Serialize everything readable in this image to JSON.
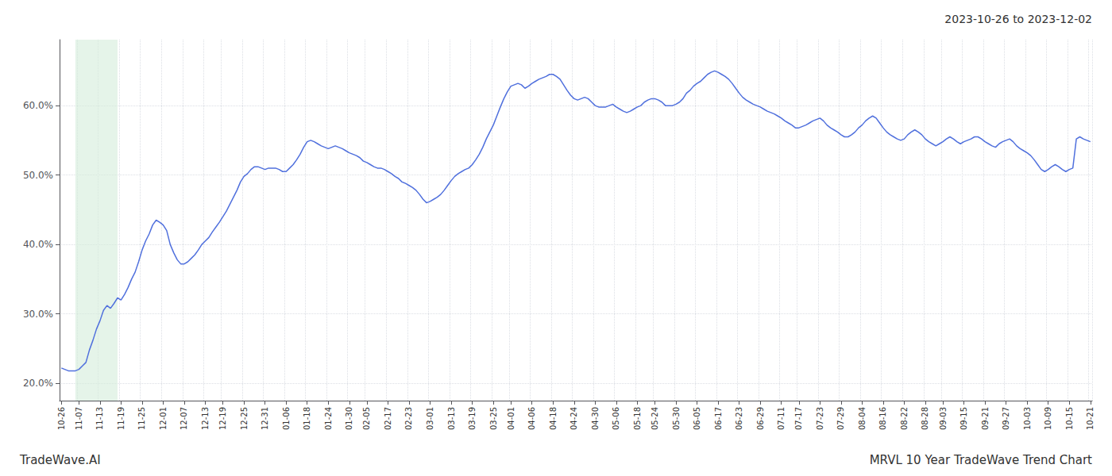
{
  "chart_data": {
    "type": "line",
    "title": "2023-10-26 to 2023-12-02",
    "annotations": [
      "TradeWave.AI",
      "MRVL 10 Year TradeWave Trend Chart"
    ],
    "grid": true,
    "ylim": [
      0.175,
      0.695
    ],
    "yticks": [
      {
        "value": 0.2,
        "label": "20.0%"
      },
      {
        "value": 0.3,
        "label": "30.0%"
      },
      {
        "value": 0.4,
        "label": "40.0%"
      },
      {
        "value": 0.5,
        "label": "50.0%"
      },
      {
        "value": 0.6,
        "label": "60.0%"
      }
    ],
    "highlight": {
      "start": 4,
      "end": 16,
      "color": "#d4edda"
    },
    "categories": [
      "10-26",
      null,
      null,
      null,
      null,
      "11-07",
      null,
      null,
      null,
      null,
      null,
      "11-13",
      null,
      null,
      null,
      null,
      null,
      "11-19",
      null,
      null,
      null,
      null,
      null,
      "11-25",
      null,
      null,
      null,
      null,
      null,
      "12-01",
      null,
      null,
      null,
      null,
      null,
      "12-07",
      null,
      null,
      null,
      null,
      null,
      "12-13",
      null,
      null,
      null,
      null,
      "12-19",
      null,
      null,
      null,
      null,
      null,
      "12-25",
      null,
      null,
      null,
      null,
      null,
      "12-31",
      null,
      null,
      null,
      null,
      null,
      "01-06",
      null,
      null,
      null,
      null,
      null,
      "01-18",
      null,
      null,
      null,
      null,
      null,
      "01-24",
      null,
      null,
      null,
      null,
      null,
      "01-30",
      null,
      null,
      null,
      null,
      "02-05",
      null,
      null,
      null,
      null,
      null,
      "02-17",
      null,
      null,
      null,
      null,
      null,
      "02-23",
      null,
      null,
      null,
      null,
      null,
      "03-01",
      null,
      null,
      null,
      null,
      null,
      "03-13",
      null,
      null,
      null,
      null,
      null,
      "03-19",
      null,
      null,
      null,
      null,
      null,
      "03-25",
      null,
      null,
      null,
      null,
      "04-01",
      null,
      null,
      null,
      null,
      null,
      "04-06",
      null,
      null,
      null,
      null,
      null,
      "04-18",
      null,
      null,
      null,
      null,
      null,
      "04-24",
      null,
      null,
      null,
      null,
      null,
      "04-30",
      null,
      null,
      null,
      null,
      null,
      "05-06",
      null,
      null,
      null,
      null,
      null,
      "05-18",
      null,
      null,
      null,
      null,
      "05-24",
      null,
      null,
      null,
      null,
      null,
      "05-30",
      null,
      null,
      null,
      null,
      null,
      "06-05",
      null,
      null,
      null,
      null,
      null,
      "06-17",
      null,
      null,
      null,
      null,
      null,
      "06-23",
      null,
      null,
      null,
      null,
      null,
      "06-29",
      null,
      null,
      null,
      null,
      null,
      "07-11",
      null,
      null,
      null,
      null,
      "07-17",
      null,
      null,
      null,
      null,
      null,
      "07-23",
      null,
      null,
      null,
      null,
      null,
      "07-29",
      null,
      null,
      null,
      null,
      null,
      "08-04",
      null,
      null,
      null,
      null,
      null,
      "08-16",
      null,
      null,
      null,
      null,
      null,
      "08-22",
      null,
      null,
      null,
      null,
      null,
      "08-28",
      null,
      null,
      null,
      null,
      "09-03",
      null,
      null,
      null,
      null,
      null,
      "09-15",
      null,
      null,
      null,
      null,
      null,
      "09-21",
      null,
      null,
      null,
      null,
      null,
      "09-27",
      null,
      null,
      null,
      null,
      null,
      "10-03",
      null,
      null,
      null,
      null,
      null,
      "10-09",
      null,
      null,
      null,
      null,
      null,
      "10-15",
      null,
      null,
      null,
      null,
      null,
      "10-21"
    ],
    "values": [
      0.222,
      0.22,
      0.218,
      0.218,
      0.218,
      0.22,
      0.225,
      0.23,
      0.248,
      0.262,
      0.278,
      0.29,
      0.305,
      0.312,
      0.308,
      0.315,
      0.323,
      0.32,
      0.328,
      0.338,
      0.35,
      0.36,
      0.375,
      0.392,
      0.405,
      0.415,
      0.428,
      0.435,
      0.432,
      0.428,
      0.42,
      0.4,
      0.388,
      0.378,
      0.372,
      0.372,
      0.375,
      0.38,
      0.385,
      0.392,
      0.4,
      0.405,
      0.41,
      0.418,
      0.425,
      0.432,
      0.44,
      0.448,
      0.458,
      0.468,
      0.478,
      0.49,
      0.498,
      0.502,
      0.508,
      0.512,
      0.512,
      0.51,
      0.508,
      0.51,
      0.51,
      0.51,
      0.508,
      0.505,
      0.505,
      0.51,
      0.515,
      0.522,
      0.53,
      0.54,
      0.548,
      0.55,
      0.548,
      0.545,
      0.542,
      0.54,
      0.538,
      0.54,
      0.542,
      0.54,
      0.538,
      0.535,
      0.532,
      0.53,
      0.528,
      0.525,
      0.52,
      0.518,
      0.515,
      0.512,
      0.51,
      0.51,
      0.508,
      0.505,
      0.502,
      0.498,
      0.495,
      0.49,
      0.488,
      0.485,
      0.482,
      0.478,
      0.472,
      0.465,
      0.46,
      0.462,
      0.465,
      0.468,
      0.472,
      0.478,
      0.485,
      0.492,
      0.498,
      0.502,
      0.505,
      0.508,
      0.51,
      0.515,
      0.522,
      0.53,
      0.54,
      0.552,
      0.562,
      0.572,
      0.585,
      0.598,
      0.61,
      0.62,
      0.628,
      0.63,
      0.632,
      0.63,
      0.625,
      0.628,
      0.632,
      0.635,
      0.638,
      0.64,
      0.642,
      0.645,
      0.645,
      0.642,
      0.638,
      0.63,
      0.622,
      0.615,
      0.61,
      0.608,
      0.61,
      0.612,
      0.61,
      0.605,
      0.6,
      0.598,
      0.598,
      0.598,
      0.6,
      0.602,
      0.598,
      0.595,
      0.592,
      0.59,
      0.592,
      0.595,
      0.598,
      0.6,
      0.605,
      0.608,
      0.61,
      0.61,
      0.608,
      0.605,
      0.6,
      0.6,
      0.6,
      0.602,
      0.605,
      0.61,
      0.618,
      0.622,
      0.628,
      0.632,
      0.635,
      0.64,
      0.645,
      0.648,
      0.65,
      0.648,
      0.645,
      0.642,
      0.638,
      0.632,
      0.625,
      0.618,
      0.612,
      0.608,
      0.605,
      0.602,
      0.6,
      0.598,
      0.595,
      0.592,
      0.59,
      0.588,
      0.585,
      0.582,
      0.578,
      0.575,
      0.572,
      0.568,
      0.568,
      0.57,
      0.572,
      0.575,
      0.578,
      0.58,
      0.582,
      0.578,
      0.572,
      0.568,
      0.565,
      0.562,
      0.558,
      0.555,
      0.555,
      0.558,
      0.562,
      0.568,
      0.572,
      0.578,
      0.582,
      0.585,
      0.582,
      0.575,
      0.568,
      0.562,
      0.558,
      0.555,
      0.552,
      0.55,
      0.552,
      0.558,
      0.562,
      0.565,
      0.562,
      0.558,
      0.552,
      0.548,
      0.545,
      0.542,
      0.545,
      0.548,
      0.552,
      0.555,
      0.552,
      0.548,
      0.545,
      0.548,
      0.55,
      0.552,
      0.555,
      0.555,
      0.552,
      0.548,
      0.545,
      0.542,
      0.54,
      0.545,
      0.548,
      0.55,
      0.552,
      0.548,
      0.542,
      0.538,
      0.535,
      0.532,
      0.528,
      0.522,
      0.515,
      0.508,
      0.505,
      0.508,
      0.512,
      0.515,
      0.512,
      0.508,
      0.505,
      0.508,
      0.51,
      0.552,
      0.555,
      0.552,
      0.55,
      0.548
    ]
  }
}
